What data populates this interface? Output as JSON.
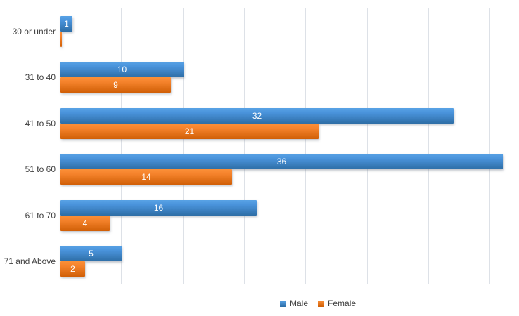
{
  "chart_data": {
    "type": "bar",
    "orientation": "horizontal",
    "title": "",
    "xlabel": "",
    "ylabel": "",
    "categories": [
      "30 or under",
      "31 to 40",
      "41 to 50",
      "51 to 60",
      "61 to 70",
      "71 and Above"
    ],
    "series": [
      {
        "name": "Male",
        "color": "#4a90d8",
        "gradient_top": "#58a2e5",
        "gradient_bottom": "#2e6ea6",
        "values": [
          1,
          10,
          32,
          36,
          16,
          5
        ]
      },
      {
        "name": "Female",
        "color": "#ed7d31",
        "gradient_top": "#fb9038",
        "gradient_bottom": "#d05f06",
        "values": [
          0,
          9,
          21,
          14,
          4,
          2
        ]
      }
    ],
    "value_axis": {
      "min": 0,
      "max": 37.4,
      "gridline_interval": 5,
      "gridlines_at": [
        0,
        5,
        10,
        15,
        20,
        25,
        30,
        35
      ],
      "tick_labels_visible": false
    },
    "data_labels": {
      "visible": true,
      "color": "#ffffff",
      "hide_zero": true
    },
    "legend": {
      "position": "bottom",
      "entries": [
        "Male",
        "Female"
      ]
    },
    "grid_on": true,
    "background_color": "#ffffff",
    "gridline_color": "#dde1e7",
    "axis_line_color": "#c9d1da",
    "category_label_color": "#404040"
  }
}
